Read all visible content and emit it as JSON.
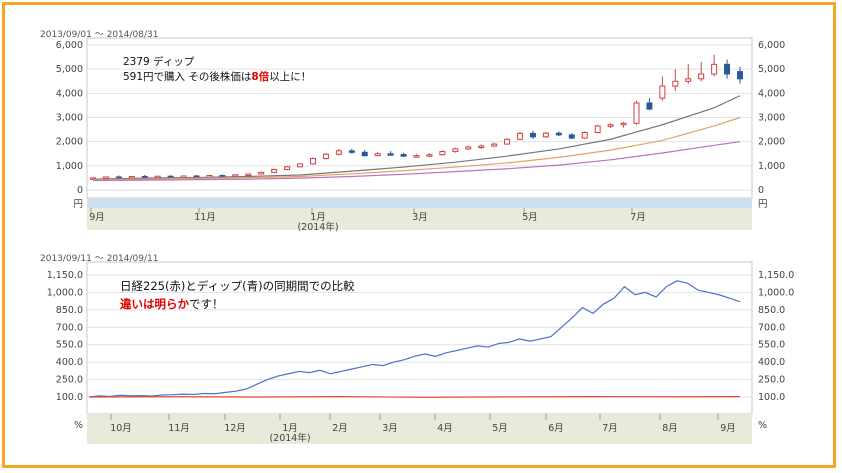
{
  "colors": {
    "frame": "#f5a623",
    "up_candle": "#d04040",
    "down_candle": "#2a5a9a",
    "ma_short": "#777777",
    "ma_mid": "#e8a060",
    "ma_long": "#c070c0",
    "dip_line": "#4a72c8",
    "nikkei_line": "#e0482a",
    "plot_bg": "#ffffff",
    "axis_band": "#e9ead9",
    "bottom_band": "#cfe0ee"
  },
  "chart_data": [
    {
      "type": "candlestick",
      "date_range": "2013/09/01 ～ 2014/08/31",
      "note": {
        "line1": "2379 ディップ",
        "line2_pre": "591円で購入 その後株価は",
        "line2_em": "8倍",
        "line2_post": "以上に！"
      },
      "ylim": [
        0,
        6000
      ],
      "yticks": [
        "6,000",
        "5,000",
        "4,000",
        "3,000",
        "2,000",
        "1,000",
        "0"
      ],
      "unit": "円",
      "xticks": [
        "9月",
        "11月",
        "1月",
        "3月",
        "5月",
        "7月"
      ],
      "xsub": "(2014年)",
      "candles": [
        {
          "date": "2013-09-02",
          "open": 470,
          "high": 530,
          "low": 440,
          "close": 500
        },
        {
          "date": "2013-09-09",
          "open": 500,
          "high": 560,
          "low": 480,
          "close": 540
        },
        {
          "date": "2013-09-16",
          "open": 540,
          "high": 600,
          "low": 510,
          "close": 520
        },
        {
          "date": "2013-09-23",
          "open": 520,
          "high": 580,
          "low": 500,
          "close": 560
        },
        {
          "date": "2013-09-30",
          "open": 560,
          "high": 620,
          "low": 530,
          "close": 540
        },
        {
          "date": "2013-10-07",
          "open": 540,
          "high": 590,
          "low": 510,
          "close": 570
        },
        {
          "date": "2013-10-14",
          "open": 570,
          "high": 610,
          "low": 540,
          "close": 560
        },
        {
          "date": "2013-10-21",
          "open": 560,
          "high": 600,
          "low": 520,
          "close": 580
        },
        {
          "date": "2013-10-28",
          "open": 580,
          "high": 620,
          "low": 550,
          "close": 570
        },
        {
          "date": "2013-11-04",
          "open": 570,
          "high": 620,
          "low": 540,
          "close": 600
        },
        {
          "date": "2013-11-11",
          "open": 600,
          "high": 640,
          "low": 560,
          "close": 590
        },
        {
          "date": "2013-11-18",
          "open": 590,
          "high": 650,
          "low": 570,
          "close": 630
        },
        {
          "date": "2013-11-25",
          "open": 630,
          "high": 690,
          "low": 600,
          "close": 660
        },
        {
          "date": "2013-12-02",
          "open": 660,
          "high": 760,
          "low": 640,
          "close": 730
        },
        {
          "date": "2013-12-09",
          "open": 730,
          "high": 880,
          "low": 700,
          "close": 850
        },
        {
          "date": "2013-12-16",
          "open": 850,
          "high": 1000,
          "low": 820,
          "close": 960
        },
        {
          "date": "2013-12-23",
          "open": 960,
          "high": 1100,
          "low": 930,
          "close": 1080
        },
        {
          "date": "2014-01-06",
          "open": 1080,
          "high": 1350,
          "low": 1050,
          "close": 1300
        },
        {
          "date": "2014-01-13",
          "open": 1300,
          "high": 1530,
          "low": 1260,
          "close": 1480
        },
        {
          "date": "2014-01-20",
          "open": 1480,
          "high": 1700,
          "low": 1420,
          "close": 1620
        },
        {
          "date": "2014-01-27",
          "open": 1620,
          "high": 1710,
          "low": 1500,
          "close": 1560
        },
        {
          "date": "2014-02-03",
          "open": 1560,
          "high": 1660,
          "low": 1380,
          "close": 1420
        },
        {
          "date": "2014-02-10",
          "open": 1420,
          "high": 1580,
          "low": 1400,
          "close": 1500
        },
        {
          "date": "2014-02-17",
          "open": 1500,
          "high": 1610,
          "low": 1440,
          "close": 1470
        },
        {
          "date": "2014-02-24",
          "open": 1470,
          "high": 1540,
          "low": 1360,
          "close": 1400
        },
        {
          "date": "2014-03-03",
          "open": 1400,
          "high": 1480,
          "low": 1350,
          "close": 1420
        },
        {
          "date": "2014-03-10",
          "open": 1420,
          "high": 1520,
          "low": 1360,
          "close": 1460
        },
        {
          "date": "2014-03-17",
          "open": 1460,
          "high": 1650,
          "low": 1430,
          "close": 1590
        },
        {
          "date": "2014-03-24",
          "open": 1590,
          "high": 1760,
          "low": 1540,
          "close": 1700
        },
        {
          "date": "2014-03-31",
          "open": 1700,
          "high": 1840,
          "low": 1660,
          "close": 1780
        },
        {
          "date": "2014-04-07",
          "open": 1780,
          "high": 1880,
          "low": 1700,
          "close": 1820
        },
        {
          "date": "2014-04-14",
          "open": 1820,
          "high": 1960,
          "low": 1780,
          "close": 1900
        },
        {
          "date": "2014-04-21",
          "open": 1900,
          "high": 2150,
          "low": 1880,
          "close": 2100
        },
        {
          "date": "2014-04-28",
          "open": 2100,
          "high": 2400,
          "low": 2060,
          "close": 2340
        },
        {
          "date": "2014-05-05",
          "open": 2340,
          "high": 2450,
          "low": 2100,
          "close": 2200
        },
        {
          "date": "2014-05-12",
          "open": 2200,
          "high": 2400,
          "low": 2150,
          "close": 2350
        },
        {
          "date": "2014-05-19",
          "open": 2350,
          "high": 2420,
          "low": 2230,
          "close": 2280
        },
        {
          "date": "2014-05-26",
          "open": 2280,
          "high": 2350,
          "low": 2100,
          "close": 2150
        },
        {
          "date": "2014-06-02",
          "open": 2150,
          "high": 2420,
          "low": 2120,
          "close": 2380
        },
        {
          "date": "2014-06-09",
          "open": 2380,
          "high": 2700,
          "low": 2340,
          "close": 2650
        },
        {
          "date": "2014-06-16",
          "open": 2650,
          "high": 2760,
          "low": 2560,
          "close": 2700
        },
        {
          "date": "2014-06-23",
          "open": 2700,
          "high": 2820,
          "low": 2580,
          "close": 2760
        },
        {
          "date": "2014-06-30",
          "open": 2760,
          "high": 3700,
          "low": 2700,
          "close": 3600
        },
        {
          "date": "2014-07-07",
          "open": 3600,
          "high": 3800,
          "low": 3300,
          "close": 3350
        },
        {
          "date": "2014-07-14",
          "open": 3800,
          "high": 4700,
          "low": 3700,
          "close": 4300
        },
        {
          "date": "2014-07-21",
          "open": 4300,
          "high": 5000,
          "low": 4100,
          "close": 4500
        },
        {
          "date": "2014-07-28",
          "open": 4500,
          "high": 5200,
          "low": 4400,
          "close": 4600
        },
        {
          "date": "2014-08-04",
          "open": 4600,
          "high": 5300,
          "low": 4500,
          "close": 4800
        },
        {
          "date": "2014-08-11",
          "open": 4800,
          "high": 5600,
          "low": 4700,
          "close": 5200
        },
        {
          "date": "2014-08-18",
          "open": 5200,
          "high": 5400,
          "low": 4600,
          "close": 4800
        },
        {
          "date": "2014-08-25",
          "open": 4900,
          "high": 5100,
          "low": 4400,
          "close": 4600
        }
      ],
      "ma_short": [
        [
          0,
          450
        ],
        [
          4,
          490
        ],
        [
          8,
          520
        ],
        [
          12,
          560
        ],
        [
          16,
          620
        ],
        [
          20,
          780
        ],
        [
          24,
          950
        ],
        [
          28,
          1150
        ],
        [
          32,
          1400
        ],
        [
          36,
          1700
        ],
        [
          40,
          2100
        ],
        [
          44,
          2700
        ],
        [
          48,
          3400
        ],
        [
          50,
          3900
        ]
      ],
      "ma_mid": [
        [
          0,
          420
        ],
        [
          4,
          450
        ],
        [
          8,
          480
        ],
        [
          12,
          510
        ],
        [
          16,
          560
        ],
        [
          20,
          670
        ],
        [
          24,
          800
        ],
        [
          28,
          950
        ],
        [
          32,
          1120
        ],
        [
          36,
          1350
        ],
        [
          40,
          1650
        ],
        [
          44,
          2050
        ],
        [
          48,
          2650
        ],
        [
          50,
          3000
        ]
      ],
      "ma_long": [
        [
          0,
          390
        ],
        [
          4,
          410
        ],
        [
          8,
          430
        ],
        [
          12,
          450
        ],
        [
          16,
          490
        ],
        [
          20,
          560
        ],
        [
          24,
          650
        ],
        [
          28,
          760
        ],
        [
          32,
          880
        ],
        [
          36,
          1030
        ],
        [
          40,
          1250
        ],
        [
          44,
          1530
        ],
        [
          48,
          1850
        ],
        [
          50,
          2000
        ]
      ]
    },
    {
      "type": "line",
      "date_range": "2013/09/11 ～ 2014/09/11",
      "note": {
        "line1": "日経225(赤)とディップ(青)の同期間での比較",
        "line2_em": "違いは明らか",
        "line2_post": "です！"
      },
      "ylim": [
        100,
        1150
      ],
      "yticks": [
        "1,150.0",
        "1,000.0",
        "850.0",
        "700.0",
        "550.0",
        "400.0",
        "250.0",
        "100.0"
      ],
      "unit": "%",
      "xticks": [
        "10月",
        "11月",
        "12月",
        "1月",
        "2月",
        "3月",
        "4月",
        "5月",
        "6月",
        "7月",
        "8月",
        "9月"
      ],
      "xsub": "(2014年)",
      "series": [
        {
          "color": "#4a72c8",
          "points": [
            [
              0,
              100
            ],
            [
              5,
              110
            ],
            [
              10,
              105
            ],
            [
              15,
              115
            ],
            [
              20,
              110
            ],
            [
              25,
              112
            ],
            [
              30,
              108
            ],
            [
              35,
              118
            ],
            [
              40,
              120
            ],
            [
              45,
              125
            ],
            [
              50,
              122
            ],
            [
              55,
              130
            ],
            [
              60,
              128
            ],
            [
              65,
              140
            ],
            [
              70,
              150
            ],
            [
              75,
              170
            ],
            [
              80,
              210
            ],
            [
              85,
              250
            ],
            [
              90,
              280
            ],
            [
              95,
              300
            ],
            [
              100,
              320
            ],
            [
              105,
              310
            ],
            [
              110,
              330
            ],
            [
              115,
              300
            ],
            [
              120,
              320
            ],
            [
              125,
              340
            ],
            [
              130,
              360
            ],
            [
              135,
              380
            ],
            [
              140,
              370
            ],
            [
              145,
              400
            ],
            [
              150,
              420
            ],
            [
              155,
              450
            ],
            [
              160,
              470
            ],
            [
              165,
              450
            ],
            [
              170,
              480
            ],
            [
              175,
              500
            ],
            [
              180,
              520
            ],
            [
              185,
              540
            ],
            [
              190,
              530
            ],
            [
              195,
              560
            ],
            [
              200,
              570
            ],
            [
              205,
              600
            ],
            [
              210,
              580
            ],
            [
              215,
              600
            ],
            [
              220,
              620
            ],
            [
              225,
              700
            ],
            [
              230,
              780
            ],
            [
              235,
              870
            ],
            [
              240,
              820
            ],
            [
              245,
              900
            ],
            [
              250,
              950
            ],
            [
              255,
              1050
            ],
            [
              260,
              980
            ],
            [
              265,
              1000
            ],
            [
              270,
              960
            ],
            [
              275,
              1050
            ],
            [
              280,
              1100
            ],
            [
              285,
              1080
            ],
            [
              290,
              1020
            ],
            [
              295,
              1000
            ],
            [
              300,
              980
            ],
            [
              305,
              950
            ],
            [
              310,
              920
            ]
          ]
        },
        {
          "color": "#e0482a",
          "points": [
            [
              0,
              100
            ],
            [
              40,
              102
            ],
            [
              80,
              100
            ],
            [
              120,
              103
            ],
            [
              160,
              98
            ],
            [
              200,
              101
            ],
            [
              240,
              103
            ],
            [
              280,
              102
            ],
            [
              310,
              103
            ]
          ]
        }
      ]
    }
  ]
}
